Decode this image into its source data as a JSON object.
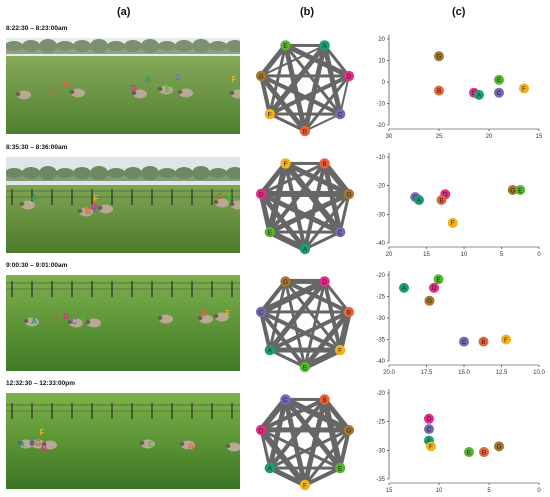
{
  "headers": {
    "a": "(a)",
    "b": "(b)",
    "c": "(c)"
  },
  "colors": {
    "A": "#1a9e77",
    "B": "#e8623a",
    "C": "#7569b3",
    "D": "#e7298a",
    "E": "#58b530",
    "F": "#f2b21c",
    "G": "#a6762a",
    "edge": "#666666"
  },
  "rows": [
    {
      "time": "8:22:30 – 8:23:00am",
      "photo_labels": [
        "A",
        "B",
        "C",
        "D",
        "E",
        "F",
        "G"
      ],
      "network": {
        "order": [
          "A",
          "D",
          "C",
          "B",
          "F",
          "G",
          "E"
        ]
      },
      "chart_data": {
        "type": "scatter",
        "xlim": [
          30,
          15
        ],
        "ylim": [
          -20,
          20
        ],
        "xticks": [
          30,
          25,
          20,
          15
        ],
        "yticks": [
          20,
          10,
          0,
          -10,
          -20
        ],
        "points": [
          {
            "id": "G",
            "x": 25,
            "y": 12
          },
          {
            "id": "B",
            "x": 25,
            "y": -4
          },
          {
            "id": "D",
            "x": 21.5,
            "y": -5
          },
          {
            "id": "A",
            "x": 21,
            "y": -6
          },
          {
            "id": "C",
            "x": 19,
            "y": -5
          },
          {
            "id": "E",
            "x": 19,
            "y": 1
          },
          {
            "id": "F",
            "x": 16.5,
            "y": -3
          }
        ]
      }
    },
    {
      "time": "8:35:30 – 8:36:00am",
      "photo_labels": [
        "A",
        "B",
        "C",
        "D",
        "E",
        "F",
        "G"
      ],
      "network": {
        "order": [
          "B",
          "G",
          "C",
          "A",
          "E",
          "D",
          "F"
        ]
      },
      "chart_data": {
        "type": "scatter",
        "xlim": [
          20,
          0
        ],
        "ylim": [
          -40,
          -10
        ],
        "xticks": [
          20,
          15,
          10,
          5,
          0
        ],
        "yticks": [
          -10,
          -20,
          -30,
          -40
        ],
        "points": [
          {
            "id": "C",
            "x": 16.5,
            "y": -24
          },
          {
            "id": "A",
            "x": 16,
            "y": -25
          },
          {
            "id": "D",
            "x": 12.5,
            "y": -23
          },
          {
            "id": "B",
            "x": 13,
            "y": -25
          },
          {
            "id": "F",
            "x": 11.5,
            "y": -33
          },
          {
            "id": "G",
            "x": 3.5,
            "y": -21.5
          },
          {
            "id": "E",
            "x": 2.5,
            "y": -21.5
          }
        ]
      }
    },
    {
      "time": "9:00:30 – 9:01:00am",
      "photo_labels": [
        "A",
        "B",
        "C",
        "D",
        "E",
        "F",
        "G"
      ],
      "network": {
        "order": [
          "D",
          "B",
          "F",
          "E",
          "A",
          "C",
          "G"
        ]
      },
      "chart_data": {
        "type": "scatter",
        "xlim": [
          20,
          10
        ],
        "ylim": [
          -40,
          -20
        ],
        "xticks": [
          20.0,
          17.5,
          15.0,
          12.5,
          10.0
        ],
        "yticks": [
          -20,
          -25,
          -30,
          -35,
          -40
        ],
        "points": [
          {
            "id": "A",
            "x": 19,
            "y": -23
          },
          {
            "id": "E",
            "x": 16.7,
            "y": -21
          },
          {
            "id": "D",
            "x": 17,
            "y": -23
          },
          {
            "id": "G",
            "x": 17.3,
            "y": -26
          },
          {
            "id": "C",
            "x": 15,
            "y": -35.5
          },
          {
            "id": "B",
            "x": 13.7,
            "y": -35.5
          },
          {
            "id": "F",
            "x": 12.2,
            "y": -35
          }
        ]
      }
    },
    {
      "time": "12:32:30 – 12:33:00pm",
      "photo_labels": [
        "A",
        "B",
        "C",
        "D",
        "E",
        "F",
        "G"
      ],
      "network": {
        "order": [
          "B",
          "G",
          "E",
          "F",
          "A",
          "D",
          "C"
        ]
      },
      "chart_data": {
        "type": "scatter",
        "xlim": [
          15,
          0
        ],
        "ylim": [
          -35,
          -20
        ],
        "xticks": [
          15,
          10,
          5,
          0
        ],
        "yticks": [
          -20,
          -25,
          -30,
          -35
        ],
        "points": [
          {
            "id": "D",
            "x": 11,
            "y": -24.5
          },
          {
            "id": "C",
            "x": 11,
            "y": -26.3
          },
          {
            "id": "A",
            "x": 11,
            "y": -28.3
          },
          {
            "id": "F",
            "x": 10.8,
            "y": -29.3
          },
          {
            "id": "E",
            "x": 7,
            "y": -30.3
          },
          {
            "id": "B",
            "x": 5.5,
            "y": -30.3
          },
          {
            "id": "G",
            "x": 4,
            "y": -29.3
          }
        ]
      }
    }
  ]
}
